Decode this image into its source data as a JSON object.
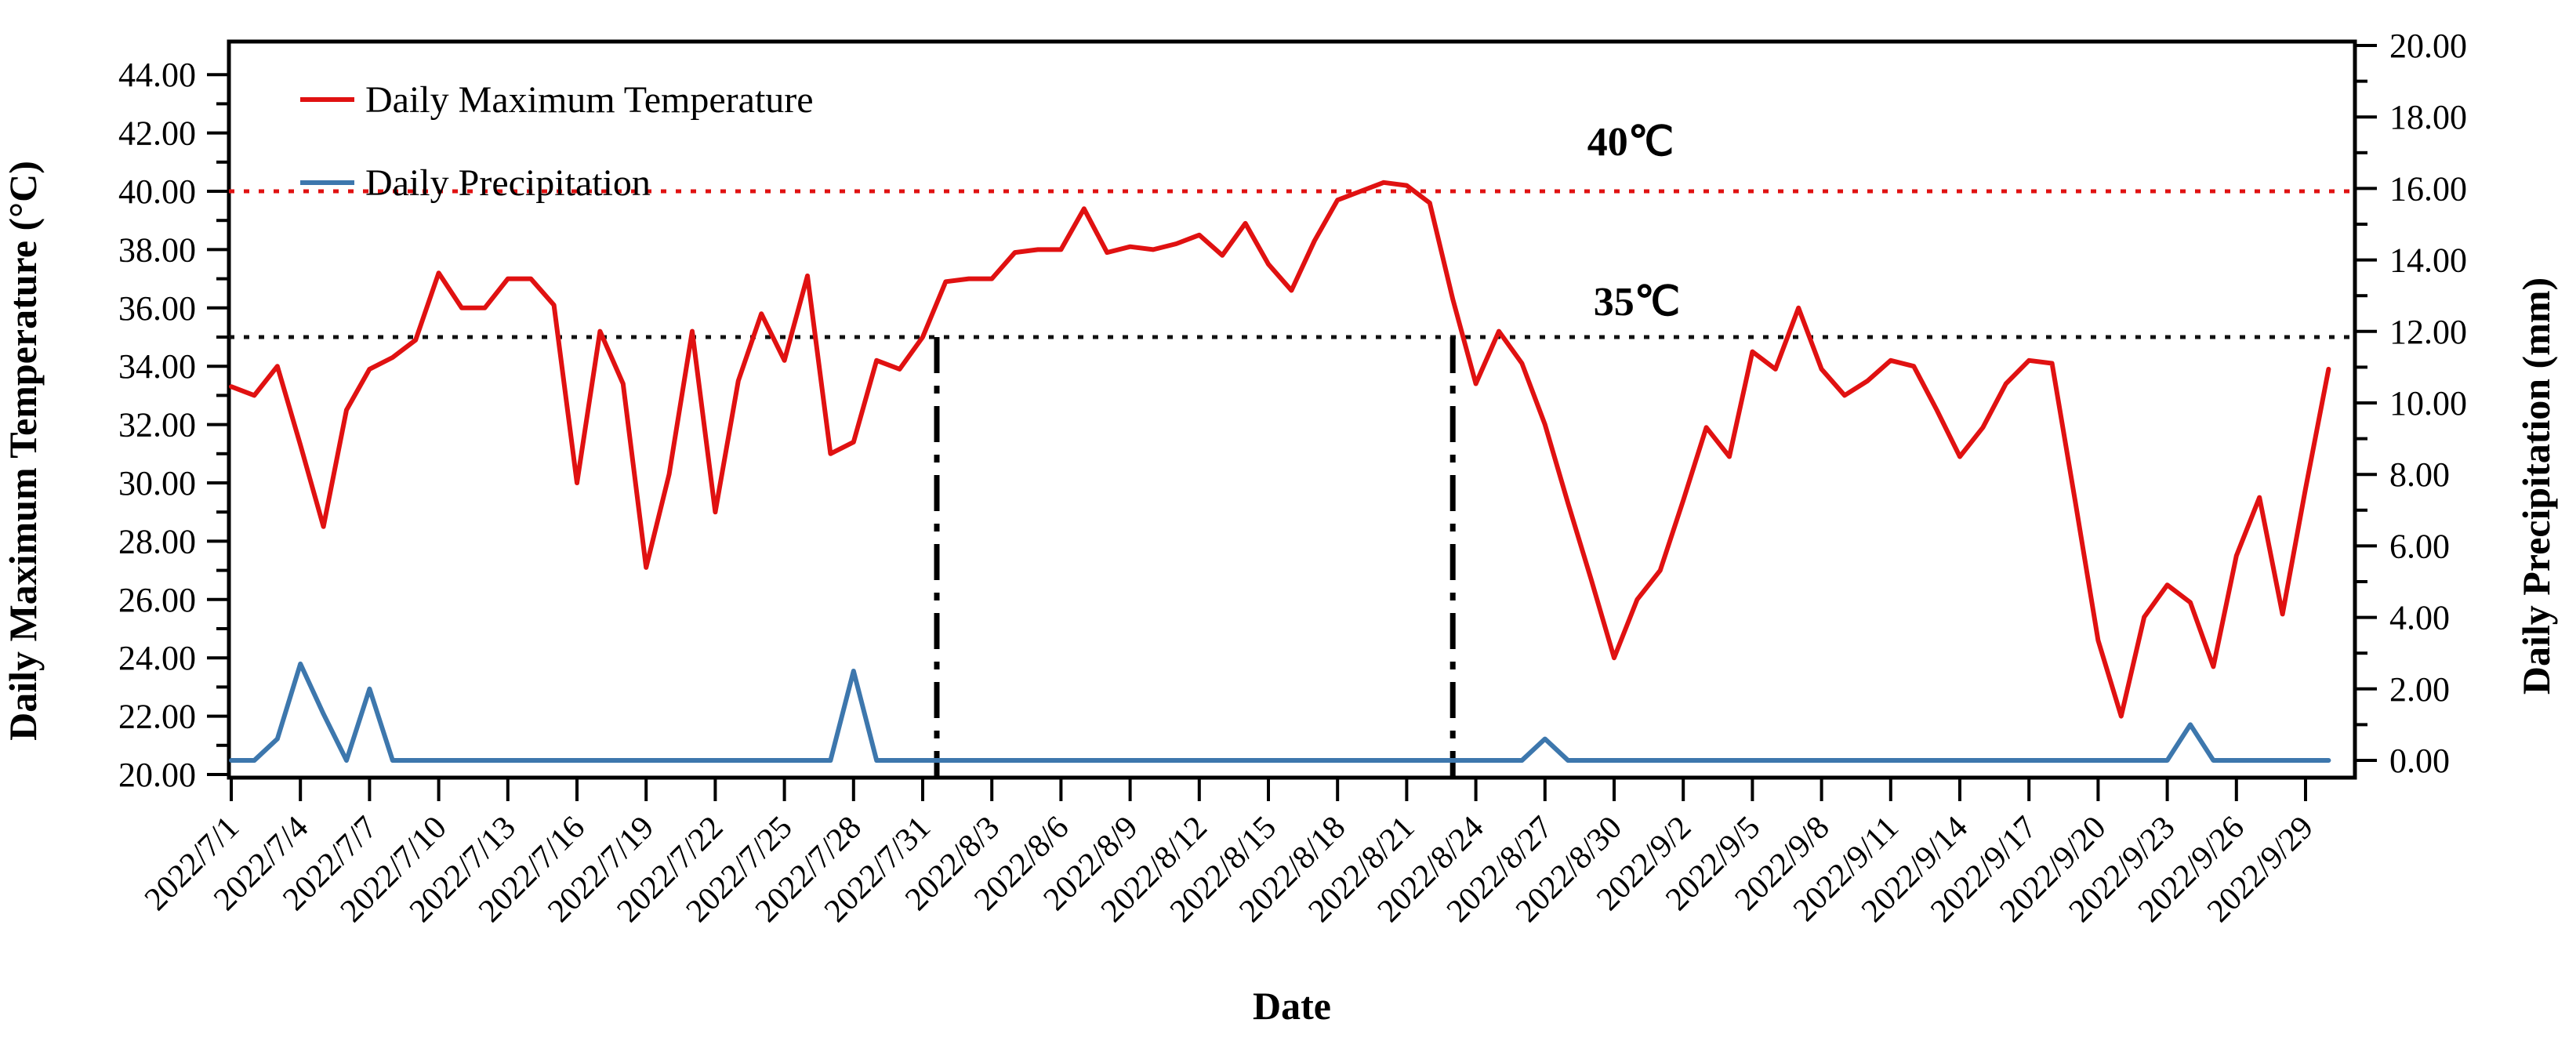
{
  "chart_data": {
    "type": "line",
    "title": "",
    "x_axis": {
      "label": "Date",
      "tick_labels": [
        "2022/7/1",
        "2022/7/4",
        "2022/7/7",
        "2022/7/10",
        "2022/7/13",
        "2022/7/16",
        "2022/7/19",
        "2022/7/22",
        "2022/7/25",
        "2022/7/28",
        "2022/7/31",
        "2022/8/3",
        "2022/8/6",
        "2022/8/9",
        "2022/8/12",
        "2022/8/15",
        "2022/8/18",
        "2022/8/21",
        "2022/8/24",
        "2022/8/27",
        "2022/8/30",
        "2022/9/2",
        "2022/9/5",
        "2022/9/8",
        "2022/9/11",
        "2022/9/14",
        "2022/9/17",
        "2022/9/20",
        "2022/9/23",
        "2022/9/26",
        "2022/9/29"
      ],
      "tick_step_days": 3
    },
    "left_axis": {
      "label": "Daily Maximum Temperature (°C)",
      "min": 20,
      "max": 44,
      "major_step": 2,
      "minor_step": 1,
      "tick_format": "0.00"
    },
    "right_axis": {
      "label": "Daily Precipitation (mm)",
      "min": 0,
      "max": 20,
      "major_step": 2,
      "minor_step": 1,
      "tick_format": "0.00"
    },
    "dates": [
      "2022/7/1",
      "2022/7/2",
      "2022/7/3",
      "2022/7/4",
      "2022/7/5",
      "2022/7/6",
      "2022/7/7",
      "2022/7/8",
      "2022/7/9",
      "2022/7/10",
      "2022/7/11",
      "2022/7/12",
      "2022/7/13",
      "2022/7/14",
      "2022/7/15",
      "2022/7/16",
      "2022/7/17",
      "2022/7/18",
      "2022/7/19",
      "2022/7/20",
      "2022/7/21",
      "2022/7/22",
      "2022/7/23",
      "2022/7/24",
      "2022/7/25",
      "2022/7/26",
      "2022/7/27",
      "2022/7/28",
      "2022/7/29",
      "2022/7/30",
      "2022/7/31",
      "2022/8/1",
      "2022/8/2",
      "2022/8/3",
      "2022/8/4",
      "2022/8/5",
      "2022/8/6",
      "2022/8/7",
      "2022/8/8",
      "2022/8/9",
      "2022/8/10",
      "2022/8/11",
      "2022/8/12",
      "2022/8/13",
      "2022/8/14",
      "2022/8/15",
      "2022/8/16",
      "2022/8/17",
      "2022/8/18",
      "2022/8/19",
      "2022/8/20",
      "2022/8/21",
      "2022/8/22",
      "2022/8/23",
      "2022/8/24",
      "2022/8/25",
      "2022/8/26",
      "2022/8/27",
      "2022/8/28",
      "2022/8/29",
      "2022/8/30",
      "2022/8/31",
      "2022/9/1",
      "2022/9/2",
      "2022/9/3",
      "2022/9/4",
      "2022/9/5",
      "2022/9/6",
      "2022/9/7",
      "2022/9/8",
      "2022/9/9",
      "2022/9/10",
      "2022/9/11",
      "2022/9/12",
      "2022/9/13",
      "2022/9/14",
      "2022/9/15",
      "2022/9/16",
      "2022/9/17",
      "2022/9/18",
      "2022/9/19",
      "2022/9/20",
      "2022/9/21",
      "2022/9/22",
      "2022/9/23",
      "2022/9/24",
      "2022/9/25",
      "2022/9/26",
      "2022/9/27",
      "2022/9/28",
      "2022/9/29",
      "2022/9/30"
    ],
    "series": [
      {
        "name": "Daily Maximum Temperature",
        "axis": "left",
        "color": "#e01111",
        "values": [
          33.3,
          33.0,
          34.0,
          31.3,
          28.5,
          32.5,
          33.9,
          34.3,
          34.9,
          37.2,
          36.0,
          36.0,
          37.0,
          37.0,
          36.1,
          30.0,
          35.2,
          33.4,
          27.1,
          30.3,
          35.2,
          29.0,
          33.5,
          35.8,
          34.2,
          37.1,
          31.0,
          31.4,
          34.2,
          33.9,
          35.0,
          36.9,
          37.0,
          37.0,
          37.9,
          38.0,
          38.0,
          39.4,
          37.9,
          38.1,
          38.0,
          38.2,
          38.5,
          37.8,
          38.9,
          37.5,
          36.6,
          38.3,
          39.7,
          40.0,
          40.3,
          40.2,
          39.6,
          36.3,
          33.4,
          35.2,
          34.1,
          32.0,
          29.3,
          26.7,
          24.0,
          26.0,
          27.0,
          29.4,
          31.9,
          30.9,
          34.5,
          33.9,
          36.0,
          33.9,
          33.0,
          33.5,
          34.2,
          34.0,
          32.5,
          30.9,
          31.9,
          33.4,
          34.2,
          34.1,
          29.4,
          24.6,
          22.0,
          25.4,
          26.5,
          25.9,
          23.7,
          27.5,
          29.5,
          25.5,
          29.8,
          33.9
        ]
      },
      {
        "name": "Daily Precipitation",
        "axis": "right",
        "color": "#3d77ad",
        "values": [
          0,
          0,
          0.6,
          2.7,
          1.3,
          0,
          2.0,
          0,
          0,
          0,
          0,
          0,
          0,
          0,
          0,
          0,
          0,
          0,
          0,
          0,
          0,
          0,
          0,
          0,
          0,
          0,
          0,
          2.5,
          0,
          0,
          0,
          0,
          0,
          0,
          0,
          0,
          0,
          0,
          0,
          0,
          0,
          0,
          0,
          0,
          0,
          0,
          0,
          0,
          0,
          0,
          0,
          0,
          0,
          0,
          0,
          0,
          0,
          0.6,
          0,
          0,
          0,
          0,
          0,
          0,
          0,
          0,
          0,
          0,
          0,
          0,
          0,
          0,
          0,
          0,
          0,
          0,
          0,
          0,
          0,
          0,
          0,
          0,
          0,
          0,
          0,
          1.0,
          0,
          0,
          0,
          0,
          0,
          0
        ]
      }
    ],
    "reference_lines": [
      {
        "label": "40℃",
        "value": 40,
        "color": "#e01111",
        "style": "dotted"
      },
      {
        "label": "35℃",
        "value": 35,
        "color": "#111111",
        "style": "dotted"
      }
    ],
    "vertical_markers": [
      {
        "date": "2022/7/31",
        "style": "dash-dot",
        "color": "#000000"
      },
      {
        "date": "2022/8/23",
        "style": "dash-dot",
        "color": "#000000"
      }
    ],
    "legend": {
      "position": "top-left",
      "entries": [
        "Daily Maximum Temperature",
        "Daily Precipitation"
      ]
    },
    "grid": false
  }
}
